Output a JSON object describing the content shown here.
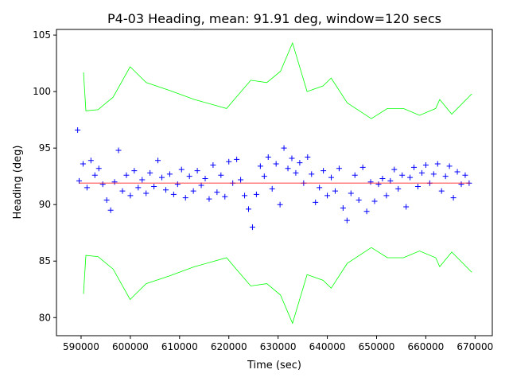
{
  "chart_data": {
    "type": "scatter",
    "title": "P4-03 Heading, mean: 91.91 deg, window=120 secs",
    "xlabel": "Time (sec)",
    "ylabel": "Heading (deg)",
    "xlim": [
      585000,
      673500
    ],
    "ylim": [
      78.4,
      105.5
    ],
    "xticks": [
      590000,
      600000,
      610000,
      620000,
      630000,
      640000,
      650000,
      660000,
      670000
    ],
    "yticks": [
      80,
      85,
      90,
      95,
      100,
      105
    ],
    "grid": false,
    "colors": {
      "points": "#0000ff",
      "mean": "#ff0000",
      "bands": "#00ff00"
    },
    "mean": 91.91,
    "points": {
      "x": [
        589300,
        589600,
        590400,
        591200,
        592000,
        592800,
        593600,
        594400,
        595200,
        596000,
        596800,
        597600,
        598400,
        599200,
        600000,
        600800,
        601600,
        602400,
        603200,
        604000,
        604800,
        605600,
        606400,
        607200,
        608000,
        608800,
        609600,
        610400,
        611200,
        612000,
        612800,
        613600,
        614400,
        615200,
        616000,
        616800,
        617600,
        618400,
        619200,
        620000,
        620800,
        621600,
        622400,
        623200,
        624000,
        624800,
        625600,
        626400,
        627200,
        628000,
        628800,
        629600,
        630400,
        631200,
        632000,
        632800,
        633600,
        634400,
        635200,
        636000,
        636800,
        637600,
        638400,
        639200,
        640000,
        640800,
        641600,
        642400,
        643200,
        644000,
        644800,
        645600,
        646400,
        647200,
        648000,
        648800,
        649600,
        650400,
        651200,
        652000,
        652800,
        653600,
        654400,
        655200,
        656000,
        656800,
        657600,
        658400,
        659200,
        660000,
        660800,
        661600,
        662400,
        663200,
        664000,
        664800,
        665600,
        666400,
        667200,
        668000,
        668800
      ],
      "y": [
        96.6,
        92.1,
        93.6,
        91.5,
        93.9,
        92.6,
        93.2,
        91.8,
        90.4,
        89.5,
        92.0,
        94.8,
        91.2,
        92.6,
        90.8,
        93.0,
        91.5,
        92.2,
        91.0,
        92.8,
        91.6,
        93.9,
        92.4,
        91.3,
        92.7,
        90.9,
        91.8,
        93.1,
        90.6,
        92.5,
        91.2,
        93.0,
        91.7,
        92.3,
        90.5,
        93.5,
        91.1,
        92.6,
        90.7,
        93.8,
        91.9,
        94.0,
        92.2,
        90.8,
        89.6,
        88.0,
        90.9,
        93.4,
        92.5,
        94.2,
        91.4,
        93.6,
        90.0,
        95.0,
        93.2,
        94.1,
        92.8,
        93.7,
        91.9,
        94.2,
        92.7,
        90.2,
        91.5,
        93.0,
        90.8,
        92.4,
        91.2,
        93.2,
        89.7,
        88.6,
        91.0,
        92.6,
        90.4,
        93.3,
        89.4,
        92.0,
        90.3,
        91.8,
        92.3,
        90.8,
        92.1,
        93.1,
        91.4,
        92.6,
        89.8,
        92.4,
        93.3,
        91.6,
        92.8,
        93.5,
        91.9,
        92.7,
        93.6,
        91.2,
        92.5,
        93.4,
        90.6,
        92.9,
        91.8,
        92.6,
        91.9
      ]
    },
    "upper_band": {
      "x": [
        590490,
        590980,
        593430,
        596500,
        599960,
        603220,
        608000,
        613020,
        619550,
        621500,
        624450,
        627710,
        630500,
        632940,
        635880,
        639140,
        640780,
        644040,
        648940,
        652200,
        655470,
        658730,
        662000,
        662820,
        665270,
        669350
      ],
      "y": [
        101.7,
        98.3,
        98.4,
        99.5,
        102.2,
        100.8,
        100.1,
        99.3,
        98.5,
        99.5,
        101.0,
        100.8,
        101.8,
        104.3,
        100.0,
        100.5,
        101.2,
        99.0,
        97.6,
        98.5,
        98.5,
        97.9,
        98.5,
        99.3,
        98.0,
        99.8
      ]
    },
    "lower_band": {
      "x": [
        590490,
        590980,
        593430,
        596500,
        599960,
        603220,
        608000,
        613020,
        619550,
        621500,
        624450,
        627710,
        630500,
        632940,
        635880,
        639140,
        640780,
        644040,
        648940,
        652200,
        655470,
        658730,
        662000,
        662820,
        665270,
        669350
      ],
      "y": [
        82.1,
        85.5,
        85.4,
        84.3,
        81.6,
        83.0,
        83.7,
        84.5,
        85.3,
        84.3,
        82.8,
        83.0,
        82.0,
        79.5,
        83.8,
        83.3,
        82.6,
        84.8,
        86.2,
        85.3,
        85.3,
        85.9,
        85.3,
        84.5,
        85.8,
        84.0
      ]
    },
    "mean_line": {
      "x": [
        589600,
        669000
      ],
      "y": [
        91.91,
        91.91
      ]
    }
  }
}
